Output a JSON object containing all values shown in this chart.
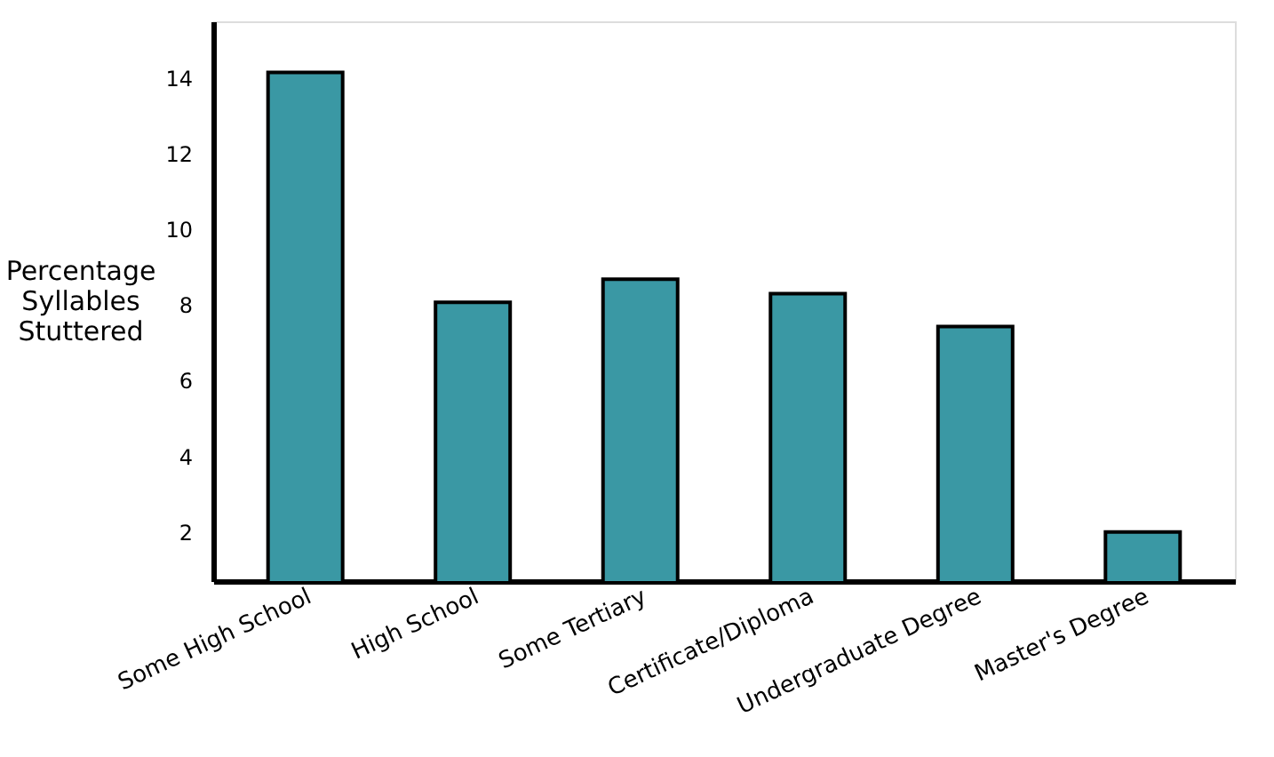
{
  "chart_data": {
    "type": "bar",
    "ylabel": "Percentage\nSyllables\nStuttered",
    "categories": [
      "Some High School",
      "High School",
      "Some Tertiary",
      "Certificate/Diploma",
      "Undergraduate Degree",
      "Master's Degree"
    ],
    "values": [
      14.15,
      8.07,
      8.68,
      8.3,
      7.43,
      2.0
    ],
    "color": "#3a98a4",
    "ylim": [
      0.7,
      15.5
    ],
    "yticks": [
      2,
      4,
      6,
      8,
      10,
      12,
      14
    ],
    "grid": false
  }
}
